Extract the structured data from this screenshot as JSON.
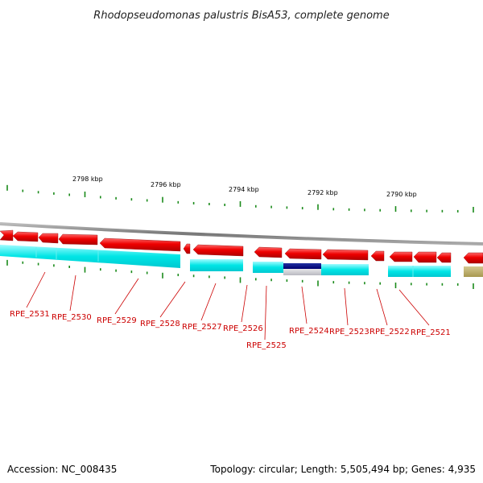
{
  "title": "Rhodopseudomonas palustris BisA53, complete genome",
  "scale_labels": [
    "2798 kbp",
    "2796 kbp",
    "2794 kbp",
    "2792 kbp",
    "2790 kbp"
  ],
  "genes": [
    {
      "id": "RPE_2531"
    },
    {
      "id": "RPE_2530"
    },
    {
      "id": "RPE_2529"
    },
    {
      "id": "RPE_2528"
    },
    {
      "id": "RPE_2527"
    },
    {
      "id": "RPE_2526"
    },
    {
      "id": "RPE_2525"
    },
    {
      "id": "RPE_2524"
    },
    {
      "id": "RPE_2523"
    },
    {
      "id": "RPE_2522"
    },
    {
      "id": "RPE_2521"
    }
  ],
  "colors": {
    "forward_arrow": "#ee0000",
    "cds_band": "#00e5e5",
    "highlight_band": "#000080",
    "other_band": "#b8a860",
    "tick": "#1a8a1a",
    "label": "#cc0000",
    "backbone": "#888888"
  },
  "footer": {
    "accession": "Accession: NC_008435",
    "stats": "Topology: circular; Length: 5,505,494 bp; Genes: 4,935"
  }
}
